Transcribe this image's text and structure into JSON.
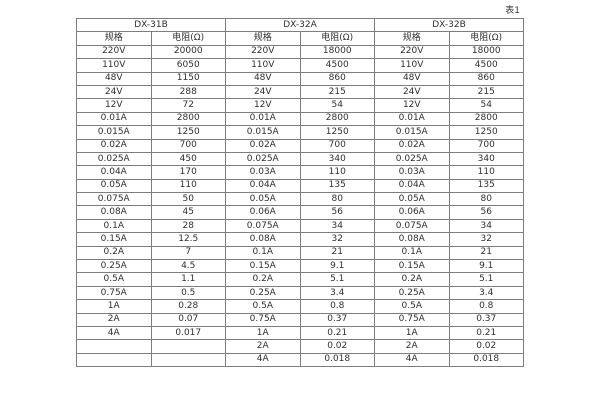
{
  "page": {
    "table_label": "表1"
  },
  "table": {
    "groups": [
      {
        "name": "DX-31B",
        "spec_header": "规格",
        "res_header": "电阻(Ω)"
      },
      {
        "name": "DX-32A",
        "spec_header": "规格",
        "res_header": "电阻(Ω)"
      },
      {
        "name": "DX-32B",
        "spec_header": "规格",
        "res_header": "电阻(Ω)"
      }
    ],
    "rows": [
      [
        "220V",
        "20000",
        "220V",
        "18000",
        "220V",
        "18000"
      ],
      [
        "110V",
        "6050",
        "110V",
        "4500",
        "110V",
        "4500"
      ],
      [
        "48V",
        "1150",
        "48V",
        "860",
        "48V",
        "860"
      ],
      [
        "24V",
        "288",
        "24V",
        "215",
        "24V",
        "215"
      ],
      [
        "12V",
        "72",
        "12V",
        "54",
        "12V",
        "54"
      ],
      [
        "0.01A",
        "2800",
        "0.01A",
        "2800",
        "0.01A",
        "2800"
      ],
      [
        "0.015A",
        "1250",
        "0.015A",
        "1250",
        "0.015A",
        "1250"
      ],
      [
        "0.02A",
        "700",
        "0.02A",
        "700",
        "0.02A",
        "700"
      ],
      [
        "0.025A",
        "450",
        "0.025A",
        "340",
        "0.025A",
        "340"
      ],
      [
        "0.04A",
        "170",
        "0.03A",
        "110",
        "0.03A",
        "110"
      ],
      [
        "0.05A",
        "110",
        "0.04A",
        "135",
        "0.04A",
        "135"
      ],
      [
        "0.075A",
        "50",
        "0.05A",
        "80",
        "0.05A",
        "80"
      ],
      [
        "0.08A",
        "45",
        "0.06A",
        "56",
        "0.06A",
        "56"
      ],
      [
        "0.1A",
        "28",
        "0.075A",
        "34",
        "0.075A",
        "34"
      ],
      [
        "0.15A",
        "12.5",
        "0.08A",
        "32",
        "0.08A",
        "32"
      ],
      [
        "0.2A",
        "7",
        "0.1A",
        "21",
        "0.1A",
        "21"
      ],
      [
        "0.25A",
        "4.5",
        "0.15A",
        "9.1",
        "0.15A",
        "9.1"
      ],
      [
        "0.5A",
        "1.1",
        "0.2A",
        "5.1",
        "0.2A",
        "5.1"
      ],
      [
        "0.75A",
        "0.5",
        "0.25A",
        "3.4",
        "0.25A",
        "3.4"
      ],
      [
        "1A",
        "0.28",
        "0.5A",
        "0.8",
        "0.5A",
        "0.8"
      ],
      [
        "2A",
        "0.07",
        "0.75A",
        "0.37",
        "0.75A",
        "0.37"
      ],
      [
        "4A",
        "0.017",
        "1A",
        "0.21",
        "1A",
        "0.21"
      ],
      [
        "",
        "",
        "2A",
        "0.02",
        "2A",
        "0.02"
      ],
      [
        "",
        "",
        "4A",
        "0.018",
        "4A",
        "0.018"
      ]
    ]
  }
}
